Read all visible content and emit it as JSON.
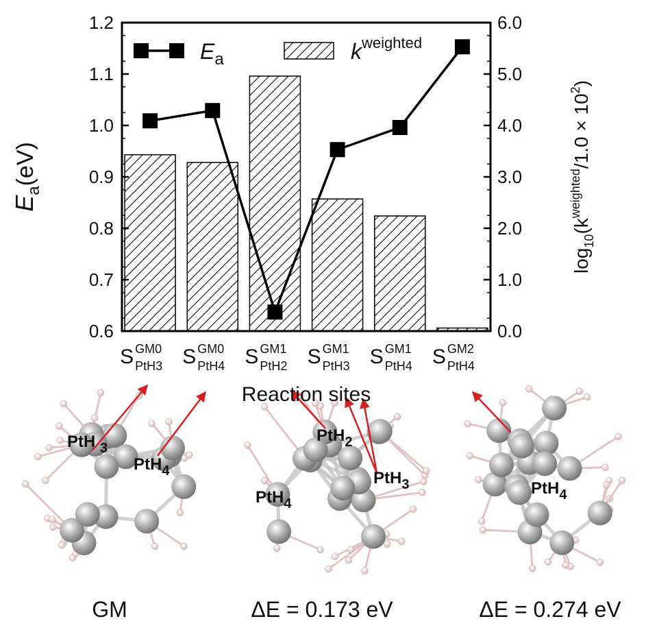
{
  "chart_data": {
    "type": "combo",
    "categories": [
      {
        "base": "S",
        "sup": "GM0",
        "sub": "PtH3"
      },
      {
        "base": "S",
        "sup": "GM0",
        "sub": "PtH4"
      },
      {
        "base": "S",
        "sup": "GM1",
        "sub": "PtH2"
      },
      {
        "base": "S",
        "sup": "GM1",
        "sub": "PtH3"
      },
      {
        "base": "S",
        "sup": "GM1",
        "sub": "PtH4"
      },
      {
        "base": "S",
        "sup": "GM2",
        "sub": "PtH4"
      }
    ],
    "xlabel": "Reaction sites",
    "ylabel": {
      "main": "E",
      "sub": "a",
      "rest": "(eV)"
    },
    "y2label": {
      "pre": "log",
      "sub": "10",
      "mid": "(k",
      "sup": "weighted",
      "post": "/1.0 × 10",
      "sup2": "2",
      "end": ")"
    },
    "ylim": [
      0.6,
      1.2
    ],
    "yticks": [
      0.6,
      0.7,
      0.8,
      0.9,
      {
        "value": 1,
        "label": "1.0"
      },
      1.1,
      1.2
    ],
    "y2lim": [
      0,
      6
    ],
    "y2ticks": [
      {
        "value": 0,
        "label": "0.0"
      },
      {
        "value": 1,
        "label": "1.0"
      },
      {
        "value": 2,
        "label": "2.0"
      },
      {
        "value": 3,
        "label": "3.0"
      },
      {
        "value": 4,
        "label": "4.0"
      },
      {
        "value": 5,
        "label": "5.0"
      },
      {
        "value": 6,
        "label": "6.0"
      }
    ],
    "series": [
      {
        "name": "E",
        "name_sub": "a",
        "type": "line",
        "color": "#000000",
        "values": [
          1.009,
          1.029,
          0.637,
          0.953,
          0.996,
          1.153
        ]
      },
      {
        "name": "k",
        "name_sup": "weighted",
        "type": "bar",
        "axis": "y2",
        "color": "#000000",
        "hatch": true,
        "values": [
          3.43,
          3.28,
          4.96,
          2.57,
          2.24,
          0.06
        ]
      }
    ],
    "legend": "top-left"
  },
  "structures": [
    {
      "caption": "GM",
      "labels": [
        {
          "base": "PtH ",
          "sub": "3"
        },
        {
          "base": "PtH",
          "sub": "4"
        }
      ]
    },
    {
      "caption": "ΔE = 0.173 eV",
      "labels": [
        {
          "base": "PtH",
          "sub": "2"
        },
        {
          "base": "PtH",
          "sub": "3"
        },
        {
          "base": "PtH",
          "sub": "4"
        }
      ]
    },
    {
      "caption": "ΔE = 0.274 eV",
      "labels": [
        {
          "base": "PtH",
          "sub": "4"
        }
      ]
    }
  ]
}
